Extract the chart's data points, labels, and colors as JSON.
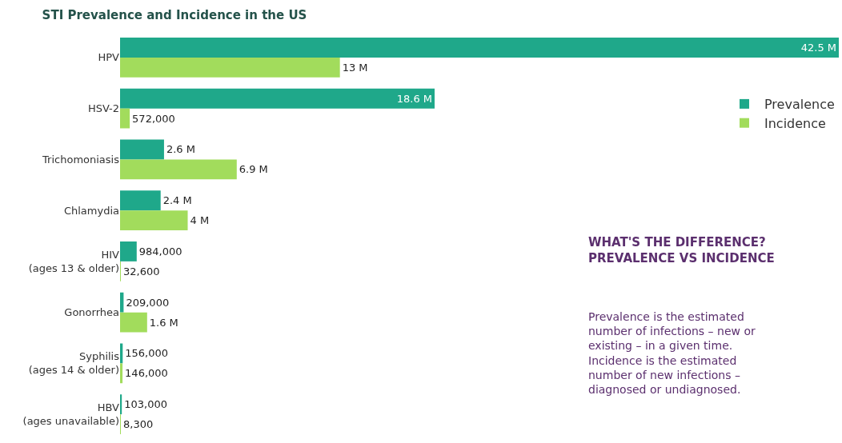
{
  "chart_data": {
    "type": "bar",
    "orientation": "horizontal",
    "title": "STI Prevalence and Incidence in the US",
    "categories": [
      "HPV",
      "HSV-2",
      "Trichomoniasis",
      "Chlamydia",
      "HIV\n(ages 13 & older)",
      "Gonorrhea",
      "Syphilis\n(ages 14 & older)",
      "HBV\n(ages unavailable)"
    ],
    "series": [
      {
        "name": "Prevalence",
        "color": "#1fa88a",
        "values": [
          42500000,
          18600000,
          2600000,
          2400000,
          984000,
          209000,
          156000,
          103000
        ],
        "value_labels": [
          "42.5 M",
          "18.6 M",
          "2.6 M",
          "2.4 M",
          "984,000",
          "209,000",
          "156,000",
          "103,000"
        ]
      },
      {
        "name": "Incidence",
        "color": "#a2dc5c",
        "values": [
          13000000,
          572000,
          6900000,
          4000000,
          32600,
          1600000,
          146000,
          8300
        ],
        "value_labels": [
          "13 M",
          "572,000",
          "6.9 M",
          "4 M",
          "32,600",
          "1.6 M",
          "146,000",
          "8,300"
        ]
      }
    ],
    "legend": "right",
    "annotations": [
      "WHAT'S THE DIFFERENCE?\nPREVALENCE VS INCIDENCE",
      "Prevalence is the estimated\nnumber of infections – new or\nexisting – in a given time.\nIncidence is the estimated\nnumber of new infections –\ndiagnosed or undiagnosed."
    ]
  }
}
